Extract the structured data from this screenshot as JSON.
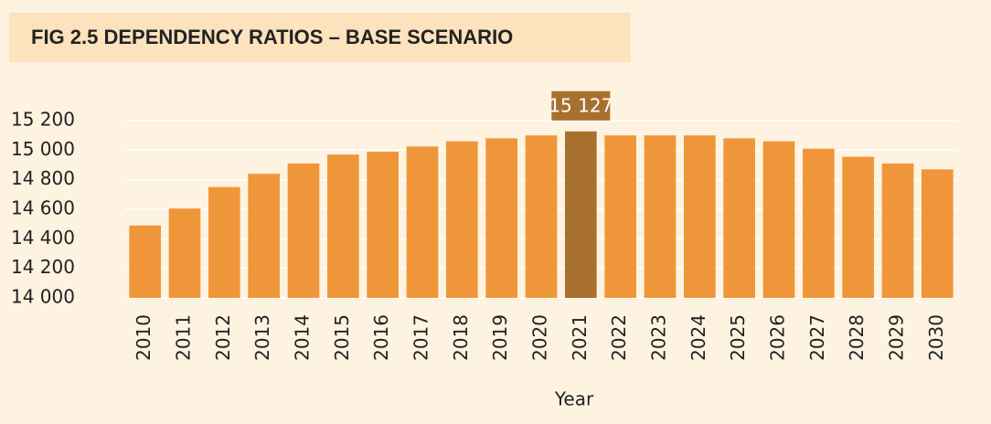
{
  "chart_data": {
    "type": "bar",
    "title": "FIG 2.5  DEPENDENCY RATIOS – BASE SCENARIO",
    "xlabel": "Year",
    "categories": [
      "2010",
      "2011",
      "2012",
      "2013",
      "2014",
      "2015",
      "2016",
      "2017",
      "2018",
      "2019",
      "2020",
      "2021",
      "2022",
      "2023",
      "2024",
      "2025",
      "2026",
      "2027",
      "2028",
      "2029",
      "2030"
    ],
    "values": [
      14490,
      14605,
      14750,
      14840,
      14910,
      14970,
      14990,
      15025,
      15060,
      15080,
      15100,
      15127,
      15100,
      15100,
      15100,
      15080,
      15060,
      15010,
      14955,
      14910,
      14870
    ],
    "value_labels": [
      null,
      null,
      null,
      null,
      null,
      null,
      null,
      null,
      null,
      null,
      null,
      "15 127",
      null,
      null,
      null,
      null,
      null,
      null,
      null,
      null,
      null
    ],
    "colors": [
      "#f0963a",
      "#f0963a",
      "#f0963a",
      "#f0963a",
      "#f0963a",
      "#f0963a",
      "#f0963a",
      "#f0963a",
      "#f0963a",
      "#f0963a",
      "#f0963a",
      "#a8702e",
      "#f0963a",
      "#f0963a",
      "#f0963a",
      "#f0963a",
      "#f0963a",
      "#f0963a",
      "#f0963a",
      "#f0963a",
      "#f0963a"
    ],
    "ylim": [
      14000,
      15200
    ],
    "yticks": [
      {
        "value": 14000,
        "label": "14 000"
      },
      {
        "value": 14200,
        "label": "14 200"
      },
      {
        "value": 14400,
        "label": "14 400"
      },
      {
        "value": 14600,
        "label": "14 600"
      },
      {
        "value": 14800,
        "label": "14 800"
      },
      {
        "value": 15000,
        "label": "15 000"
      },
      {
        "value": 15200,
        "label": "15 200"
      }
    ],
    "grid": true
  }
}
